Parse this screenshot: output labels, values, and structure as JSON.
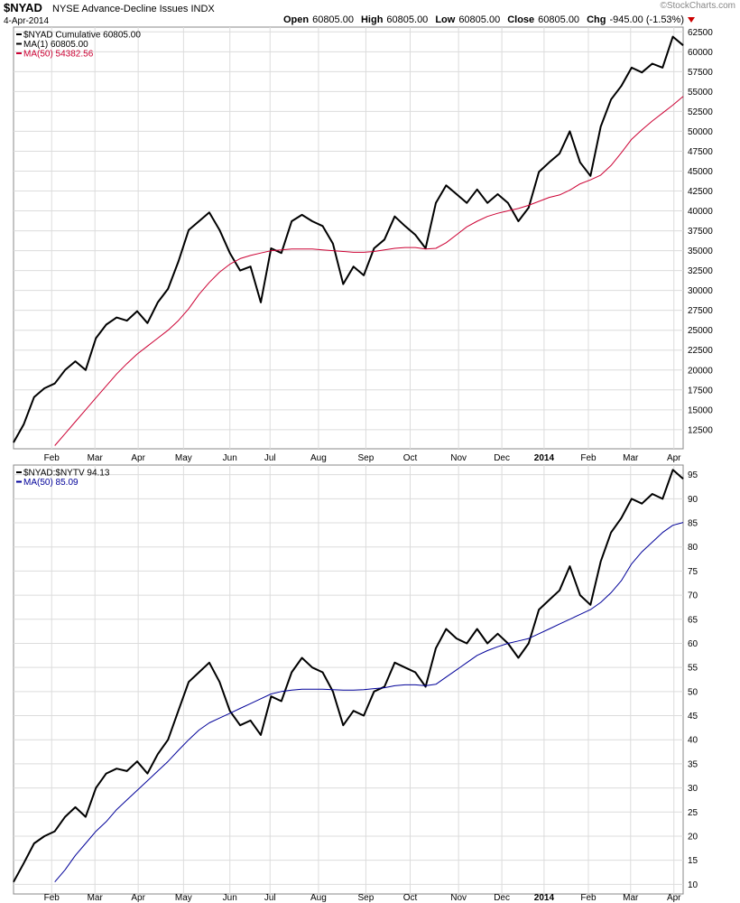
{
  "header": {
    "symbol": "$NYAD",
    "name": "NYSE Advance-Decline Issues",
    "exchange": "INDX",
    "date": "4-Apr-2014",
    "credit": "©StockCharts.com",
    "quote": [
      {
        "label": "Open",
        "value": "60805.00"
      },
      {
        "label": "High",
        "value": "60805.00"
      },
      {
        "label": "Low",
        "value": "60805.00"
      },
      {
        "label": "Close",
        "value": "60805.00"
      },
      {
        "label": "Chg",
        "value": "-945.00 (-1.53%)"
      }
    ]
  },
  "chart_data": [
    {
      "type": "line",
      "ylim": [
        10100,
        63100
      ],
      "xlim": [
        0,
        65
      ],
      "yticks": [
        12500,
        15000,
        17500,
        20000,
        22500,
        25000,
        27500,
        30000,
        32500,
        35000,
        37500,
        40000,
        42500,
        45000,
        47500,
        50000,
        52500,
        55000,
        57500,
        60000,
        62500
      ],
      "xticks": [
        {
          "value": 3.7,
          "label": "Feb"
        },
        {
          "value": 7.9,
          "label": "Mar"
        },
        {
          "value": 12.1,
          "label": "Apr"
        },
        {
          "value": 16.5,
          "label": "May"
        },
        {
          "value": 21.0,
          "label": "Jun"
        },
        {
          "value": 24.9,
          "label": "Jul"
        },
        {
          "value": 29.6,
          "label": "Aug"
        },
        {
          "value": 34.2,
          "label": "Sep"
        },
        {
          "value": 38.5,
          "label": "Oct"
        },
        {
          "value": 43.2,
          "label": "Nov"
        },
        {
          "value": 47.4,
          "label": "Dec"
        },
        {
          "value": 51.5,
          "label": "2014"
        },
        {
          "value": 55.8,
          "label": "Feb"
        },
        {
          "value": 59.9,
          "label": "Mar"
        },
        {
          "value": 64.1,
          "label": "Apr"
        }
      ],
      "grid": true,
      "series": [
        {
          "name": "$NYAD Cumulative 60805.00",
          "color": "#000000",
          "width": 2,
          "values": [
            10900,
            13200,
            16600,
            17700,
            18300,
            20000,
            21100,
            20000,
            24000,
            25700,
            26600,
            26200,
            27400,
            25900,
            28500,
            30200,
            33600,
            37600,
            38700,
            39800,
            37600,
            34700,
            32500,
            33000,
            28500,
            35300,
            34700,
            38700,
            39500,
            38700,
            38100,
            35900,
            30800,
            33000,
            31900,
            35300,
            36400,
            39300,
            38100,
            37000,
            35300,
            41000,
            43200,
            42100,
            41000,
            42700,
            41000,
            42100,
            41000,
            38700,
            40400,
            44900,
            46100,
            47200,
            50000,
            46100,
            44400,
            50600,
            54000,
            55700,
            58000,
            57400,
            58500,
            58000,
            61900,
            60805
          ]
        },
        {
          "name": "MA(1) 60805.00",
          "color": "#000000",
          "width": 1,
          "values": [
            10900,
            13200,
            16600,
            17700,
            18300,
            20000,
            21100,
            20000,
            24000,
            25700,
            26600,
            26200,
            27400,
            25900,
            28500,
            30200,
            33600,
            37600,
            38700,
            39800,
            37600,
            34700,
            32500,
            33000,
            28500,
            35300,
            34700,
            38700,
            39500,
            38700,
            38100,
            35900,
            30800,
            33000,
            31900,
            35300,
            36400,
            39300,
            38100,
            37000,
            35300,
            41000,
            43200,
            42100,
            41000,
            42700,
            41000,
            42100,
            41000,
            38700,
            40400,
            44900,
            46100,
            47200,
            50000,
            46100,
            44400,
            50600,
            54000,
            55700,
            58000,
            57400,
            58500,
            58000,
            61900,
            60805
          ]
        },
        {
          "name": "MA(50) 54382.56",
          "color": "#cc0033",
          "width": 1,
          "values": [
            null,
            null,
            null,
            null,
            10500,
            12000,
            13500,
            15000,
            16500,
            18000,
            19500,
            20800,
            22000,
            23000,
            24000,
            25000,
            26200,
            27700,
            29500,
            31000,
            32300,
            33300,
            34000,
            34400,
            34700,
            35000,
            35100,
            35200,
            35200,
            35200,
            35100,
            35000,
            34900,
            34800,
            34800,
            34900,
            35100,
            35300,
            35400,
            35400,
            35200,
            35300,
            36000,
            37000,
            38000,
            38700,
            39300,
            39700,
            40000,
            40300,
            40700,
            41200,
            41700,
            42000,
            42600,
            43400,
            43900,
            44500,
            45700,
            47300,
            49000,
            50200,
            51300,
            52300,
            53300,
            54382.56
          ]
        }
      ]
    },
    {
      "type": "line",
      "ylim": [
        8,
        97
      ],
      "xlim": [
        0,
        65
      ],
      "yticks": [
        10,
        15,
        20,
        25,
        30,
        35,
        40,
        45,
        50,
        55,
        60,
        65,
        70,
        75,
        80,
        85,
        90,
        95
      ],
      "xticks": [
        {
          "value": 3.7,
          "label": "Feb"
        },
        {
          "value": 7.9,
          "label": "Mar"
        },
        {
          "value": 12.1,
          "label": "Apr"
        },
        {
          "value": 16.5,
          "label": "May"
        },
        {
          "value": 21.0,
          "label": "Jun"
        },
        {
          "value": 24.9,
          "label": "Jul"
        },
        {
          "value": 29.6,
          "label": "Aug"
        },
        {
          "value": 34.2,
          "label": "Sep"
        },
        {
          "value": 38.5,
          "label": "Oct"
        },
        {
          "value": 43.2,
          "label": "Nov"
        },
        {
          "value": 47.4,
          "label": "Dec"
        },
        {
          "value": 51.5,
          "label": "2014"
        },
        {
          "value": 55.8,
          "label": "Feb"
        },
        {
          "value": 59.9,
          "label": "Mar"
        },
        {
          "value": 64.1,
          "label": "Apr"
        }
      ],
      "grid": true,
      "series": [
        {
          "name": "$NYAD:$NYTV 94.13",
          "color": "#000000",
          "width": 2,
          "values": [
            10.5,
            14.4,
            18.5,
            20,
            21,
            24,
            26,
            24,
            30,
            33,
            34,
            33.5,
            35.5,
            33,
            37,
            40,
            46,
            52,
            54,
            56,
            52,
            46,
            43,
            44,
            41,
            49,
            48,
            54,
            57,
            55,
            54,
            50,
            43,
            46,
            45,
            50,
            51,
            56,
            55,
            54,
            51,
            59,
            63,
            61,
            60,
            63,
            60,
            62,
            60,
            57,
            60,
            67,
            69,
            71,
            76,
            70,
            68,
            77,
            83,
            86,
            90,
            89,
            91,
            90,
            96,
            94.13
          ]
        },
        {
          "name": "MA(50) 85.09",
          "color": "#000099",
          "width": 1,
          "values": [
            null,
            null,
            null,
            null,
            10.5,
            13,
            16,
            18.5,
            21,
            23,
            25.5,
            27.5,
            29.5,
            31.5,
            33.5,
            35.5,
            37.8,
            40,
            42,
            43.5,
            44.5,
            45.5,
            46.5,
            47.5,
            48.5,
            49.5,
            50,
            50.3,
            50.5,
            50.5,
            50.5,
            50.4,
            50.3,
            50.3,
            50.4,
            50.6,
            50.8,
            51.2,
            51.4,
            51.4,
            51.2,
            51.5,
            53,
            54.5,
            56,
            57.5,
            58.5,
            59.3,
            60,
            60.5,
            61,
            62,
            63,
            64,
            65,
            66,
            67,
            68.5,
            70.5,
            73,
            76.5,
            79,
            81,
            83,
            84.5,
            85.09
          ]
        }
      ]
    }
  ]
}
